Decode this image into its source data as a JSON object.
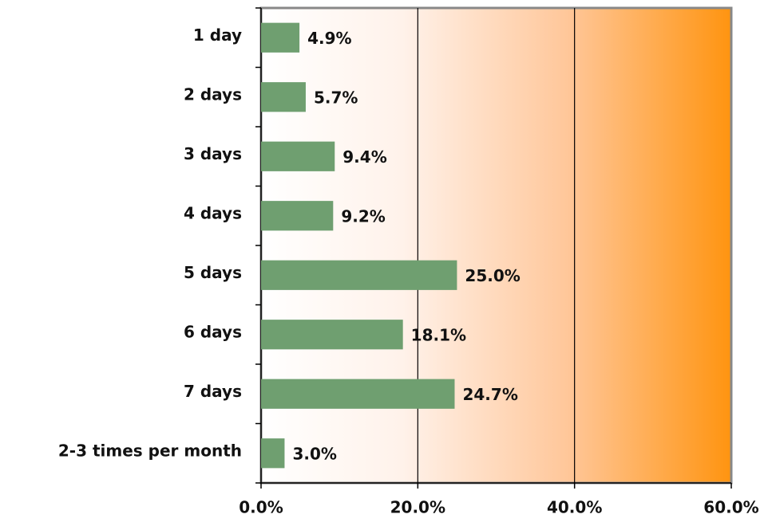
{
  "chart_data": {
    "type": "bar",
    "orientation": "horizontal",
    "categories": [
      "1 day",
      "2 days",
      "3 days",
      "4 days",
      "5 days",
      "6 days",
      "7 days",
      "2-3 times per month"
    ],
    "values": [
      4.9,
      5.7,
      9.4,
      9.2,
      25.0,
      18.1,
      24.7,
      3.0
    ],
    "value_labels": [
      "4.9%",
      "5.7%",
      "9.4%",
      "9.2%",
      "25.0%",
      "18.1%",
      "24.7%",
      "3.0%"
    ],
    "color": "#6f9f70",
    "xlim": [
      0,
      60
    ],
    "xticks": [
      {
        "value": 0,
        "label": "0.0%"
      },
      {
        "value": 20,
        "label": "20.0%"
      },
      {
        "value": 40,
        "label": "40.0%"
      },
      {
        "value": 60,
        "label": "60.0%"
      }
    ],
    "grid": true
  }
}
